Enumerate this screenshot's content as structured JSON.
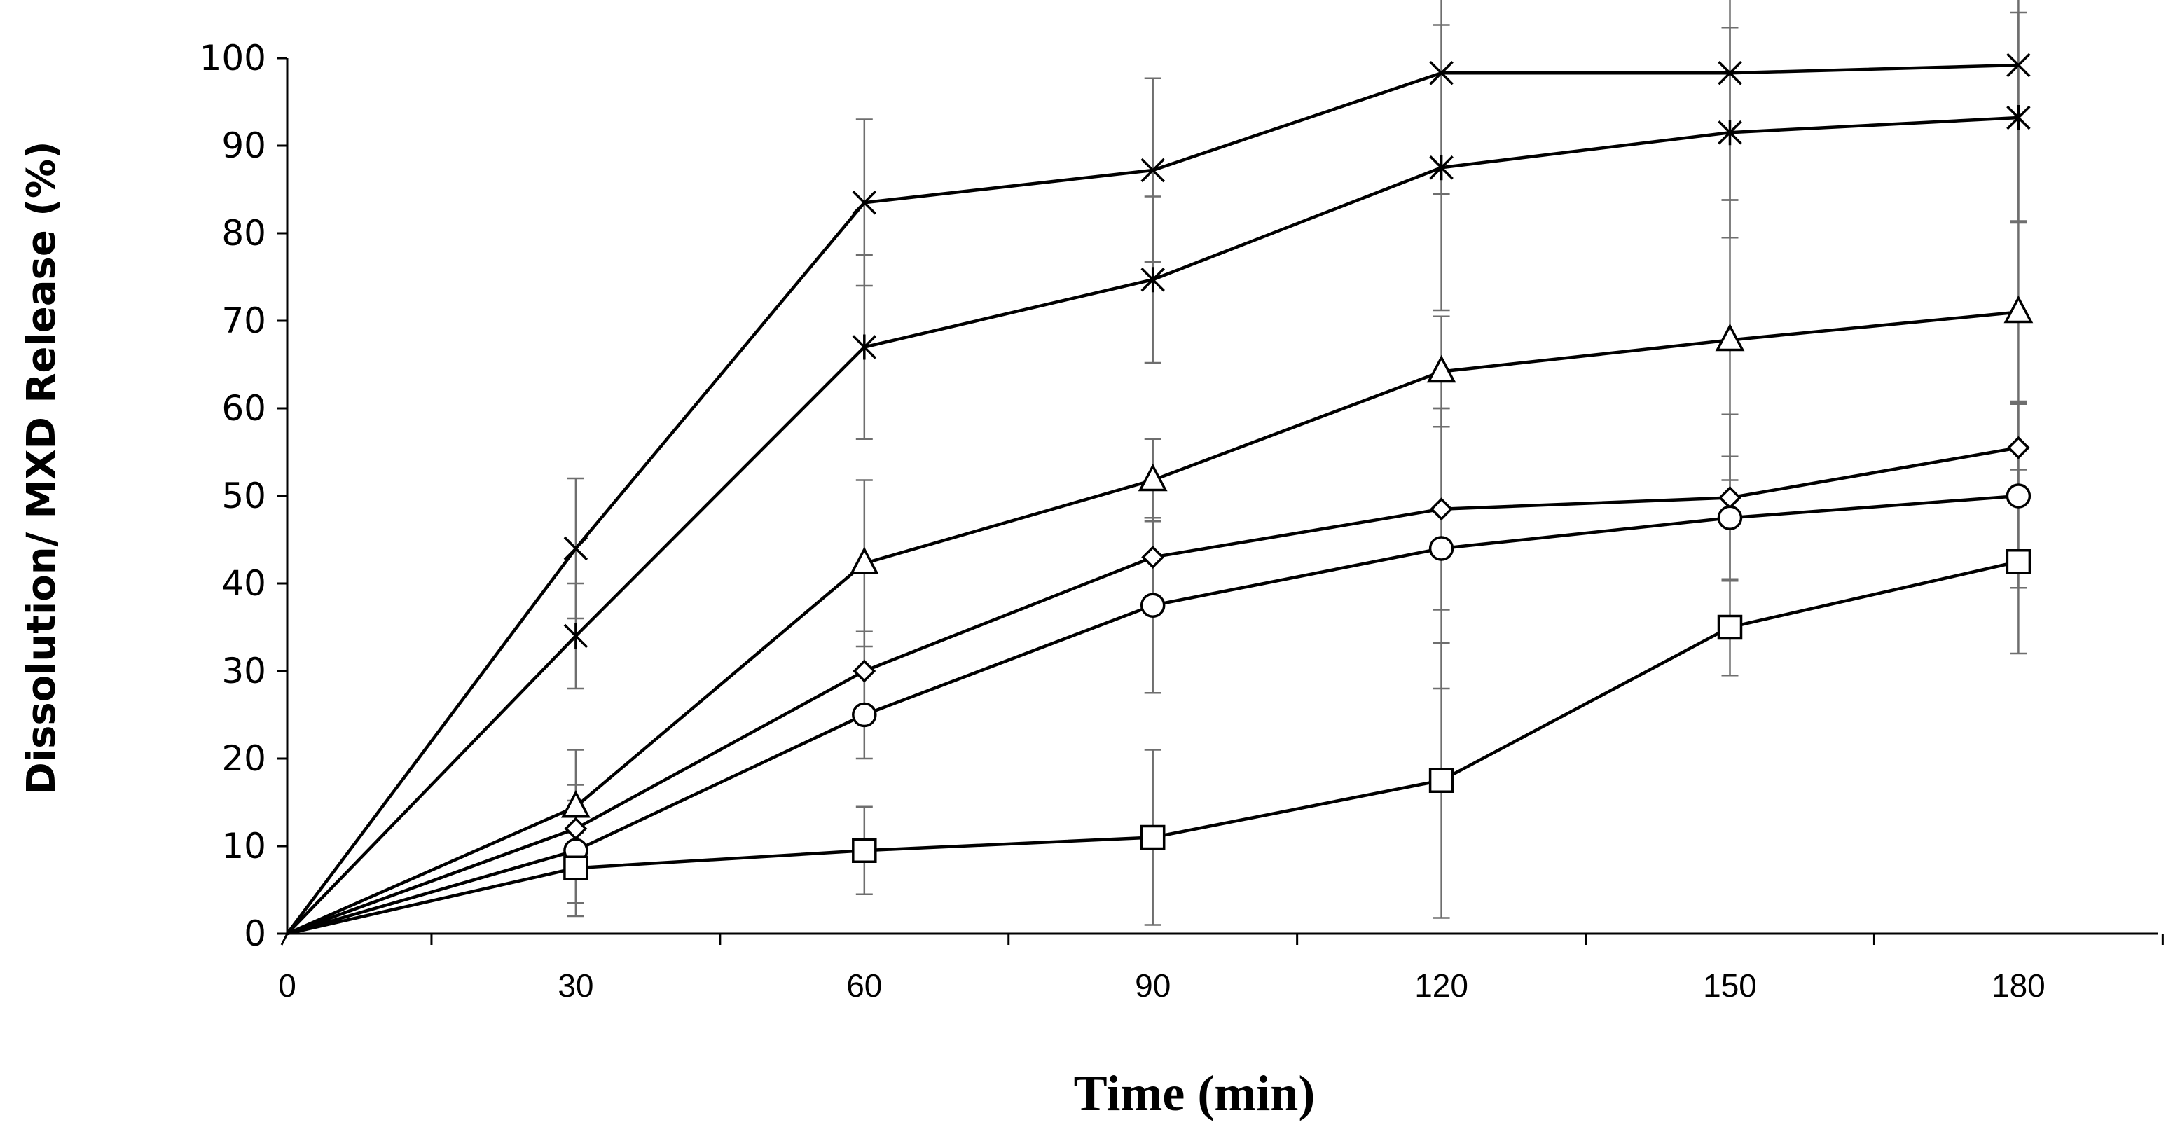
{
  "chart_data": {
    "type": "line",
    "title": "",
    "xlabel": "Time (min)",
    "ylabel": "Dissolution/ MXD Release (%)",
    "x": [
      0,
      30,
      60,
      90,
      120,
      150,
      180
    ],
    "x_tick_labels": [
      "0",
      "30",
      "60",
      "90",
      "120",
      "150",
      "180"
    ],
    "y_tick_labels": [
      "0",
      "10",
      "20",
      "30",
      "40",
      "50",
      "60",
      "70",
      "80",
      "90",
      "100"
    ],
    "xlim": [
      0,
      195
    ],
    "ylim": [
      0,
      100
    ],
    "grid": false,
    "legend": "none",
    "series": [
      {
        "name": "x-marker top",
        "marker": "x",
        "values": [
          0,
          44,
          83.5,
          87.2,
          98.3,
          98.3,
          99.2
        ],
        "errors": [
          0,
          8,
          9.5,
          10.5,
          13.8,
          14.5,
          17.8
        ]
      },
      {
        "name": "star-marker",
        "marker": "star",
        "values": [
          0,
          34,
          67,
          74.7,
          87.5,
          91.5,
          93.2
        ],
        "errors": [
          0,
          6,
          10.5,
          9.5,
          16.3,
          12,
          12
        ]
      },
      {
        "name": "triangle",
        "marker": "triangle",
        "values": [
          0,
          14.5,
          42.3,
          51.8,
          64.2,
          67.8,
          71
        ],
        "errors": [
          0,
          6.5,
          9.5,
          4.7,
          6.3,
          16,
          10.3
        ]
      },
      {
        "name": "diamond",
        "marker": "diamond",
        "values": [
          0,
          12,
          30,
          43,
          48.5,
          49.8,
          55.5
        ],
        "errors": [
          0,
          3.2,
          4.5,
          4.5,
          11.5,
          9.5,
          5.3
        ]
      },
      {
        "name": "circle",
        "marker": "circle",
        "values": [
          0,
          9.5,
          25,
          37.5,
          44,
          47.5,
          50
        ],
        "errors": [
          0,
          7.5,
          5,
          10,
          16,
          7,
          10.5
        ]
      },
      {
        "name": "square",
        "marker": "square",
        "values": [
          0,
          7.5,
          9.5,
          11,
          17.5,
          35,
          42.5
        ],
        "errors": [
          0,
          4,
          5,
          10,
          15.7,
          5.5,
          10.5
        ]
      }
    ]
  }
}
